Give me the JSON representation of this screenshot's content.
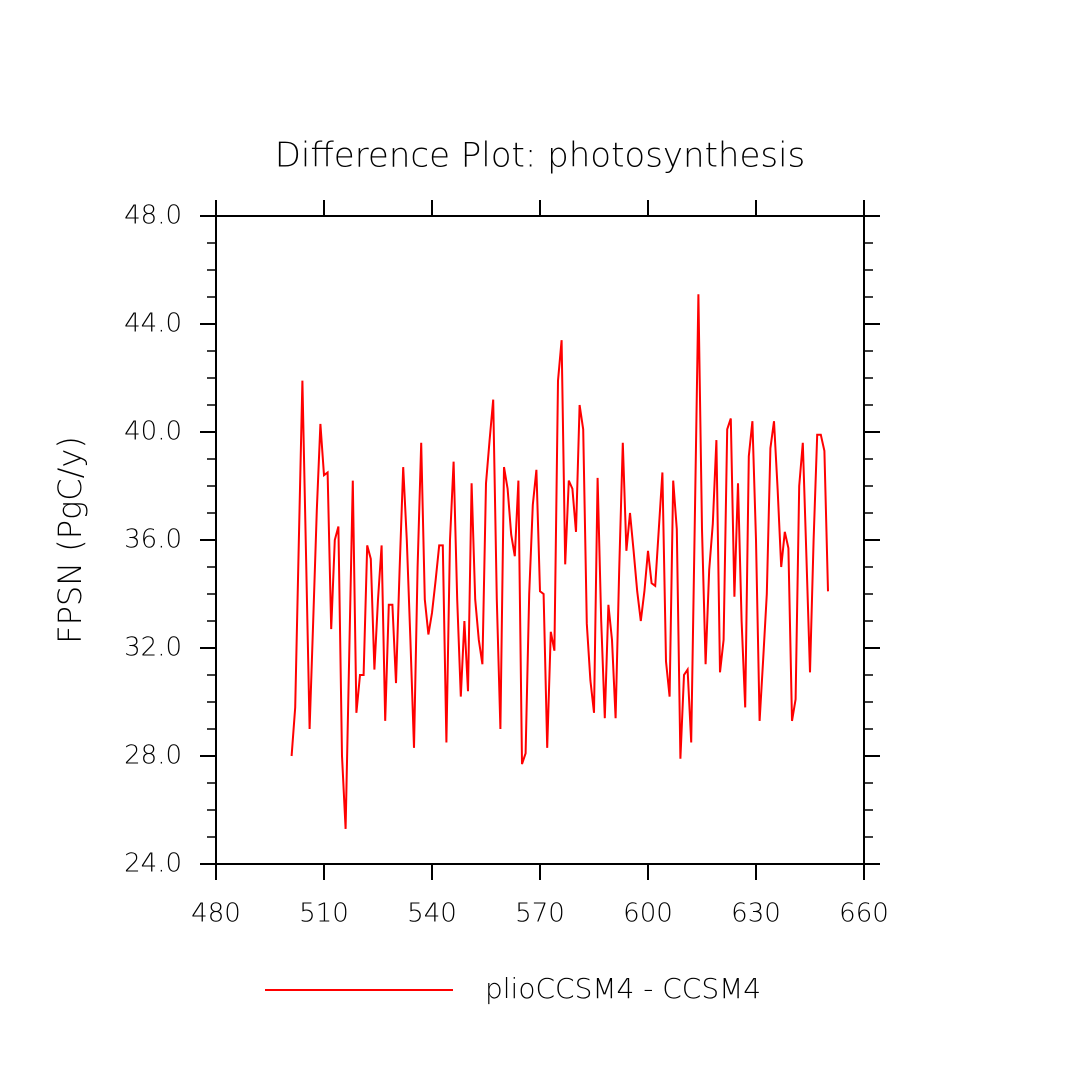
{
  "chart_data": {
    "type": "line",
    "title": "Difference Plot: photosynthesis",
    "y_label": "FPSN  (PgC/y)",
    "x": [
      501,
      502,
      503,
      504,
      505,
      506,
      507,
      508,
      509,
      510,
      511,
      512,
      513,
      514,
      515,
      516,
      517,
      518,
      519,
      520,
      521,
      522,
      523,
      524,
      525,
      526,
      527,
      528,
      529,
      530,
      531,
      532,
      533,
      534,
      535,
      536,
      537,
      538,
      539,
      540,
      541,
      542,
      543,
      544,
      545,
      546,
      547,
      548,
      549,
      550,
      551,
      552,
      553,
      554,
      555,
      556,
      557,
      558,
      559,
      560,
      561,
      562,
      563,
      564,
      565,
      566,
      567,
      568,
      569,
      570,
      571,
      572,
      573,
      574,
      575,
      576,
      577,
      578,
      579,
      580,
      581,
      582,
      583,
      584,
      585,
      586,
      587,
      588,
      589,
      590,
      591,
      592,
      593,
      594,
      595,
      596,
      597,
      598,
      599,
      600,
      601,
      602,
      603,
      604,
      605,
      606,
      607,
      608,
      609,
      610,
      611,
      612,
      613,
      614,
      615,
      616,
      617,
      618,
      619,
      620,
      621,
      622,
      623,
      624,
      625,
      626,
      627,
      628,
      629,
      630,
      631,
      632,
      633,
      634,
      635,
      636,
      637,
      638,
      639,
      640,
      641,
      642,
      643,
      644,
      645,
      646,
      647,
      648,
      649,
      650
    ],
    "series": [
      {
        "name": "plioCCSM4 - CCSM4",
        "color": "#ff0000",
        "values": [
          28.0,
          29.8,
          35.9,
          41.9,
          35.5,
          29.0,
          33.0,
          37.1,
          40.3,
          38.4,
          38.5,
          32.7,
          36.0,
          36.5,
          28.0,
          25.3,
          31.7,
          38.2,
          29.6,
          31.0,
          31.0,
          35.8,
          35.3,
          31.2,
          33.8,
          35.8,
          29.3,
          33.6,
          33.6,
          30.7,
          34.9,
          38.7,
          36.0,
          32.3,
          28.3,
          35.0,
          39.6,
          33.8,
          32.5,
          33.3,
          34.5,
          35.8,
          35.8,
          28.5,
          36.0,
          38.9,
          33.8,
          30.2,
          33.0,
          30.4,
          38.1,
          33.8,
          32.3,
          31.4,
          38.1,
          39.7,
          41.2,
          33.8,
          29.0,
          38.7,
          37.9,
          36.2,
          35.4,
          38.2,
          27.7,
          28.1,
          34.0,
          37.3,
          38.6,
          34.1,
          34.0,
          28.3,
          32.6,
          31.9,
          41.9,
          43.4,
          35.1,
          38.2,
          37.9,
          36.3,
          41.0,
          40.1,
          32.9,
          30.8,
          29.6,
          38.3,
          33.0,
          29.4,
          33.6,
          32.3,
          29.4,
          34.9,
          39.6,
          35.6,
          37.0,
          35.6,
          34.1,
          33.0,
          34.1,
          35.6,
          34.4,
          34.3,
          36.4,
          38.5,
          31.5,
          30.2,
          38.2,
          36.4,
          27.9,
          31.0,
          31.2,
          28.5,
          36.7,
          45.1,
          36.4,
          31.4,
          34.9,
          36.6,
          39.7,
          31.1,
          32.3,
          40.1,
          40.5,
          33.9,
          38.1,
          33.0,
          29.8,
          39.1,
          40.4,
          36.0,
          29.3,
          31.6,
          34.0,
          39.4,
          40.4,
          37.9,
          35.0,
          36.3,
          35.7,
          29.3,
          30.1,
          38.0,
          39.6,
          35.4,
          31.1,
          36.0,
          39.9,
          39.9,
          39.3,
          34.1
        ]
      }
    ],
    "xlim": [
      480,
      660
    ],
    "xticks": [
      480,
      510,
      540,
      570,
      600,
      630,
      660
    ],
    "ylim": [
      24,
      48
    ],
    "yticks": [
      {
        "value": 24,
        "label": "24.0"
      },
      {
        "value": 28,
        "label": "28.0"
      },
      {
        "value": 32,
        "label": "32.0"
      },
      {
        "value": 36,
        "label": "36.0"
      },
      {
        "value": 40,
        "label": "40.0"
      },
      {
        "value": 44,
        "label": "44.0"
      },
      {
        "value": 48,
        "label": "48.0"
      }
    ],
    "yminorticks": [
      25,
      26,
      27,
      29,
      30,
      31,
      33,
      34,
      35,
      37,
      38,
      39,
      41,
      42,
      43,
      45,
      46,
      47
    ],
    "legend": "bottom"
  }
}
